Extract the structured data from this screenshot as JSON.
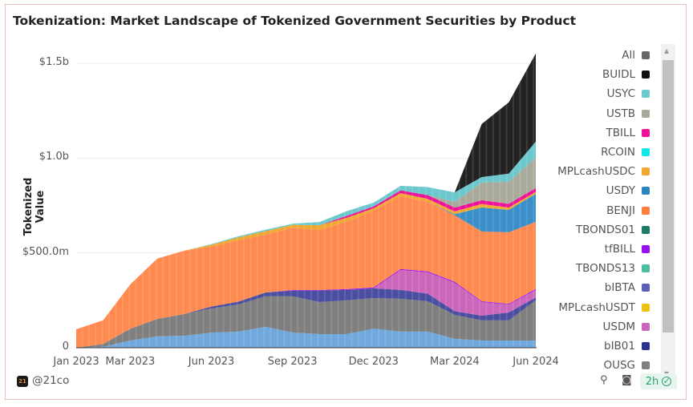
{
  "title": "Tokenization: Market Landscape of Tokenized Government Securities by Product",
  "footer": {
    "handle": "@21co",
    "logo_text": "21",
    "refresh_badge": "2h",
    "icons": [
      "plug-icon",
      "camera-icon",
      "check-circle-icon"
    ]
  },
  "legend": [
    {
      "label": "All",
      "color": "#666666"
    },
    {
      "label": "BUIDL",
      "color": "#111111"
    },
    {
      "label": "USYC",
      "color": "#6cc8cc"
    },
    {
      "label": "USTB",
      "color": "#aaaa9c"
    },
    {
      "label": "TBILL",
      "color": "#ee1199"
    },
    {
      "label": "RCOIN",
      "color": "#11e8e8"
    },
    {
      "label": "MPLcashUSDC",
      "color": "#f0a830"
    },
    {
      "label": "USDY",
      "color": "#2e86c1"
    },
    {
      "label": "BENJI",
      "color": "#ff7f3f"
    },
    {
      "label": "TBONDS01",
      "color": "#217a66"
    },
    {
      "label": "tfBILL",
      "color": "#9911ee"
    },
    {
      "label": "TBONDS13",
      "color": "#4cbfa0"
    },
    {
      "label": "bIBTA",
      "color": "#5b5fb5"
    },
    {
      "label": "MPLcashUSDT",
      "color": "#f0c010"
    },
    {
      "label": "USDM",
      "color": "#cc66bb"
    },
    {
      "label": "bIB01",
      "color": "#2e3192"
    },
    {
      "label": "OUSG",
      "color": "#7f7f7f"
    }
  ],
  "chart_data": {
    "type": "area",
    "stacked": true,
    "title": "Tokenization: Market Landscape of Tokenized Government Securities by Product",
    "xlabel": "",
    "ylabel": "Tokenized Value",
    "units": "USD millions",
    "ylim": [
      0,
      1600
    ],
    "yticks": [
      {
        "v": 0,
        "label": "0"
      },
      {
        "v": 500,
        "label": "$500.0m"
      },
      {
        "v": 1000,
        "label": "$1.0b"
      },
      {
        "v": 1500,
        "label": "$1.5b"
      }
    ],
    "xticks": [
      "Jan 2023",
      "Mar 2023",
      "Jun 2023",
      "Sep 2023",
      "Dec 2023",
      "Mar 2024",
      "Jun 2024"
    ],
    "grid": true,
    "legend_position": "right",
    "x": [
      "2023-01",
      "2023-02",
      "2023-03",
      "2023-04",
      "2023-05",
      "2023-06",
      "2023-07",
      "2023-08",
      "2023-09",
      "2023-10",
      "2023-11",
      "2023-12",
      "2024-01",
      "2024-02",
      "2024-03",
      "2024-04",
      "2024-05",
      "2024-06"
    ],
    "series": [
      {
        "color": "#6fa8dc",
        "values": [
          0,
          5,
          38,
          60,
          63,
          80,
          85,
          110,
          80,
          72,
          72,
          101,
          85,
          85,
          47,
          38,
          38,
          38
        ]
      },
      {
        "name": "OUSG",
        "color": "#7f7f7f",
        "values": [
          0,
          15,
          62,
          92,
          115,
          127,
          143,
          161,
          191,
          169,
          178,
          161,
          173,
          160,
          126,
          106,
          106,
          212
        ]
      },
      {
        "name": "bIB01",
        "color": "#4a4ea0",
        "values": [
          0,
          0,
          0,
          0,
          0,
          10,
          15,
          20,
          30,
          60,
          55,
          51,
          47,
          40,
          20,
          25,
          42,
          15
        ]
      },
      {
        "name": "USDM",
        "color": "#cc66bb",
        "values": [
          0,
          0,
          0,
          0,
          0,
          0,
          0,
          0,
          0,
          0,
          0,
          0,
          105,
          113,
          150,
          72,
          42,
          40
        ]
      },
      {
        "name": "MPLcashUSDT",
        "color": "#f0c010",
        "values": [
          0,
          0,
          0,
          0,
          0,
          0,
          0,
          0,
          0,
          0,
          0,
          0,
          0,
          0,
          0,
          0,
          0,
          0
        ]
      },
      {
        "name": "bIBTA",
        "color": "#5b5fb5",
        "values": [
          0,
          0,
          0,
          0,
          0,
          0,
          0,
          0,
          0,
          0,
          0,
          0,
          0,
          0,
          0,
          0,
          0,
          0
        ]
      },
      {
        "name": "TBONDS13",
        "color": "#4cbfa0",
        "values": [
          0,
          0,
          0,
          0,
          0,
          0,
          0,
          0,
          0,
          0,
          0,
          0,
          0,
          0,
          0,
          0,
          0,
          0
        ]
      },
      {
        "name": "tfBILL",
        "color": "#9911ee",
        "values": [
          0,
          0,
          0,
          0,
          0,
          0,
          0,
          0,
          3,
          3,
          4,
          5,
          5,
          5,
          5,
          4,
          4,
          5
        ]
      },
      {
        "name": "TBONDS01",
        "color": "#217a66",
        "values": [
          0,
          0,
          0,
          0,
          0,
          0,
          0,
          0,
          0,
          0,
          0,
          0,
          0,
          0,
          0,
          0,
          0,
          0
        ]
      },
      {
        "name": "BENJI",
        "color": "#ff8a50",
        "values": [
          97,
          125,
          234,
          318,
          334,
          316,
          324,
          305,
          329,
          317,
          355,
          405,
          385,
          367,
          351,
          368,
          377,
          354
        ]
      },
      {
        "name": "USDY",
        "color": "#3a8fc8",
        "values": [
          0,
          0,
          0,
          0,
          0,
          0,
          0,
          0,
          0,
          0,
          0,
          0,
          0,
          0,
          5,
          127,
          118,
          148
        ]
      },
      {
        "name": "MPLcashUSDC",
        "color": "#f0a830",
        "values": [
          0,
          0,
          0,
          0,
          0,
          10,
          15,
          18,
          15,
          25,
          21,
          12,
          15,
          15,
          15,
          18,
          12,
          10
        ]
      },
      {
        "name": "RCOIN",
        "color": "#11e8e8",
        "values": [
          0,
          0,
          0,
          0,
          0,
          0,
          0,
          0,
          0,
          0,
          0,
          0,
          0,
          0,
          0,
          0,
          0,
          0
        ]
      },
      {
        "name": "TBILL",
        "color": "#ee1199",
        "values": [
          0,
          0,
          0,
          0,
          0,
          0,
          0,
          0,
          0,
          0,
          10,
          10,
          15,
          20,
          20,
          20,
          20,
          20
        ]
      },
      {
        "name": "USTB",
        "color": "#aaaa9c",
        "values": [
          0,
          0,
          0,
          0,
          0,
          0,
          0,
          0,
          0,
          0,
          0,
          0,
          0,
          0,
          30,
          93,
          116,
          161
        ]
      },
      {
        "name": "USYC",
        "color": "#6cc8cc",
        "values": [
          0,
          0,
          0,
          0,
          0,
          3,
          6,
          8,
          6,
          17,
          25,
          20,
          24,
          42,
          50,
          29,
          43,
          84
        ]
      },
      {
        "name": "BUIDL",
        "color": "#222222",
        "values": [
          0,
          0,
          0,
          0,
          0,
          0,
          0,
          0,
          0,
          0,
          0,
          0,
          0,
          0,
          0,
          280,
          376,
          465
        ]
      }
    ]
  }
}
